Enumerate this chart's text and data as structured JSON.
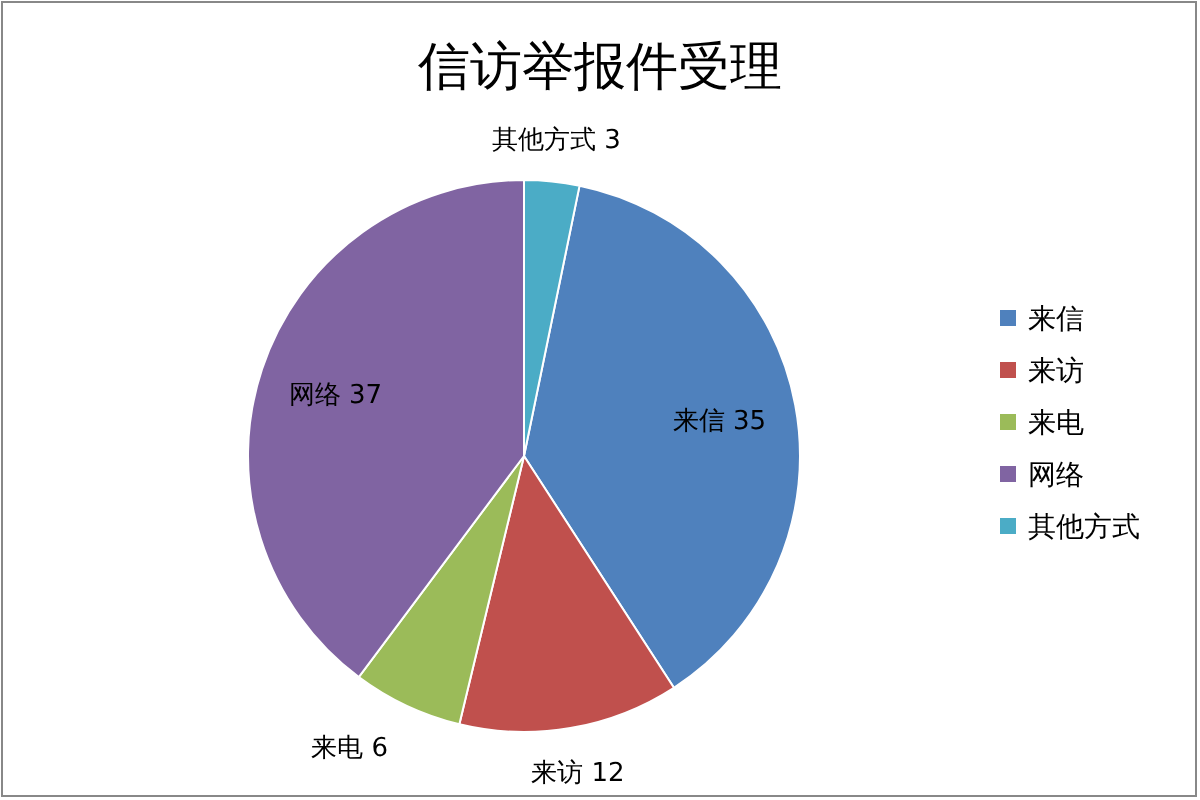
{
  "chart_data": {
    "type": "pie",
    "title": "信访举报件受理",
    "categories": [
      "来信",
      "来访",
      "来电",
      "网络",
      "其他方式"
    ],
    "values": [
      35,
      12,
      6,
      37,
      3
    ],
    "colors": [
      "#4f81bd",
      "#c0504d",
      "#9bbb59",
      "#8064a2",
      "#4bacc6"
    ],
    "data_labels": true,
    "legend": "right"
  }
}
